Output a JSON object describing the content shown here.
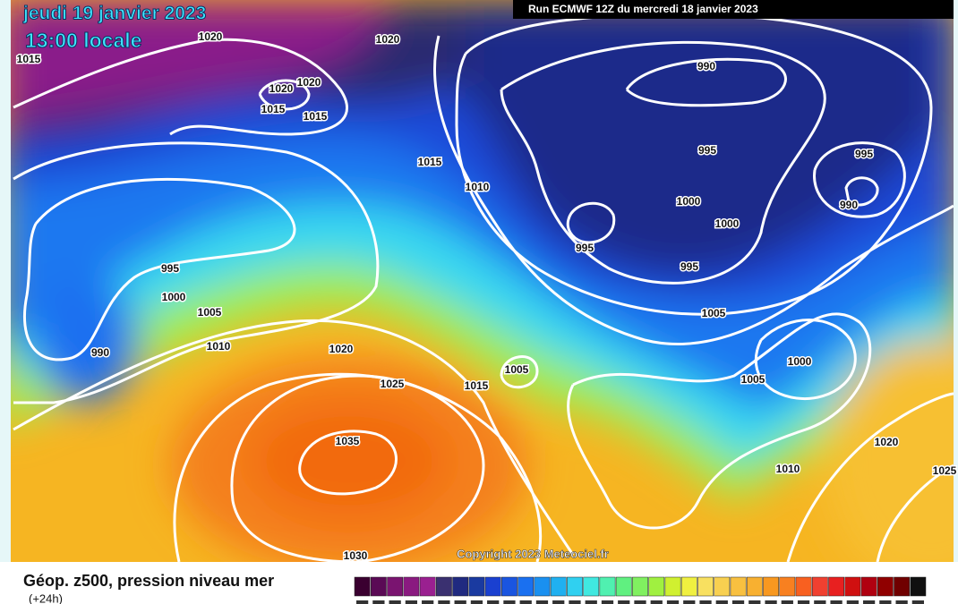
{
  "header": {
    "date": "jeudi 19 janvier 2023",
    "time": "13:00 locale",
    "run": "Run ECMWF 12Z du mercredi 18 janvier 2023"
  },
  "map": {
    "isobar_labels": [
      "1020",
      "1020",
      "1015",
      "1020",
      "1020",
      "1015",
      "1015",
      "1015",
      "1010",
      "990",
      "995",
      "1000",
      "1000",
      "995",
      "995",
      "995",
      "990",
      "1005",
      "995",
      "1000",
      "1005",
      "990",
      "1010",
      "1020",
      "1025",
      "1015",
      "1005",
      "1000",
      "1005",
      "1035",
      "1030",
      "1020",
      "1010",
      "1025"
    ]
  },
  "copyright": "Copyright 2023 Meteociel.fr",
  "legend": {
    "title": "Géop. z500, pression niveau mer",
    "subtitle": "(+24h)"
  }
}
